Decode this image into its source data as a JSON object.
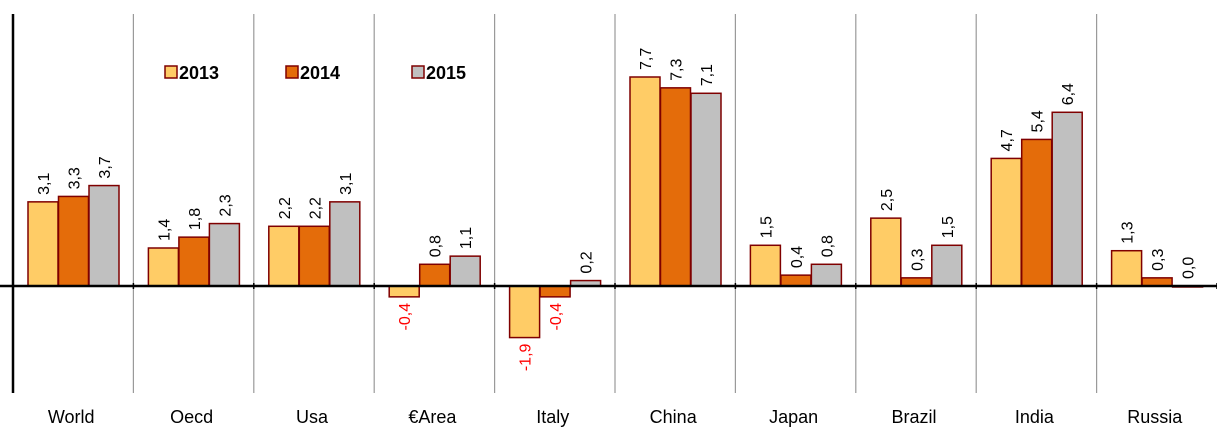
{
  "chart_data": {
    "type": "bar",
    "categories": [
      "World",
      "Oecd",
      "Usa",
      "€Area",
      "Italy",
      "China",
      "Japan",
      "Brazil",
      "India",
      "Russia"
    ],
    "series": [
      {
        "name": "2013",
        "values": [
          3.1,
          1.4,
          2.2,
          -0.4,
          -1.9,
          7.7,
          1.5,
          2.5,
          4.7,
          1.3
        ],
        "labels": [
          "3,1",
          "1,4",
          "2,2",
          "-0,4",
          "-1,9",
          "7,7",
          "1,5",
          "2,5",
          "4,7",
          "1,3"
        ],
        "color": "#FFCC66"
      },
      {
        "name": "2014",
        "values": [
          3.3,
          1.8,
          2.2,
          0.8,
          -0.4,
          7.3,
          0.4,
          0.3,
          5.4,
          0.3
        ],
        "labels": [
          "3,3",
          "1,8",
          "2,2",
          "0,8",
          "-0,4",
          "7,3",
          "0,4",
          "0,3",
          "5,4",
          "0,3"
        ],
        "color": "#E46C0A"
      },
      {
        "name": "2015",
        "values": [
          3.7,
          2.3,
          3.1,
          1.1,
          0.2,
          7.1,
          0.8,
          1.5,
          6.4,
          0.0
        ],
        "labels": [
          "3,7",
          "2,3",
          "3,1",
          "1,1",
          "0,2",
          "7,1",
          "0,8",
          "1,5",
          "6,4",
          "0,0"
        ],
        "color": "#C0C0C0"
      }
    ],
    "ylim": [
      -4.0,
      10.2
    ],
    "grid": "vertical category separators",
    "legend": "top-left",
    "negative_label_color": "#FF0000",
    "bar_border_color": "#7F0000"
  }
}
